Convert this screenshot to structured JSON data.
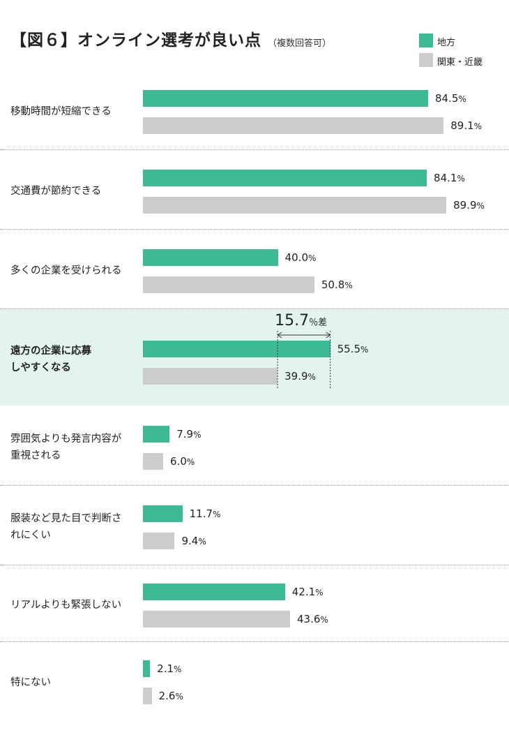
{
  "title": "【図６】オンライン選考が良い点",
  "subtitle": "（複数回答可）",
  "colors": {
    "regional": "#3cb995",
    "kanto_kinki": "#cccccc",
    "highlight_bg": "#e3f3ed"
  },
  "legend": [
    {
      "label": "地方",
      "color": "#3cb995"
    },
    {
      "label": "関東・近畿",
      "color": "#cccccc"
    }
  ],
  "chart_data": {
    "type": "bar",
    "orientation": "horizontal",
    "categories": [
      "移動時間が短縮できる",
      "交通費が節約できる",
      "多くの企業を受けられる",
      "遠方の企業に応募しやすくなる",
      "雰囲気よりも発言内容が重視される",
      "服装など見た目で判断されにくい",
      "リアルよりも緊張しない",
      "特にない"
    ],
    "category_lines": [
      [
        "移動時間が短縮できる"
      ],
      [
        "交通費が節約できる"
      ],
      [
        "多くの企業を受けられる"
      ],
      [
        "遠方の企業に応募",
        "しやすくなる"
      ],
      [
        "雰囲気よりも発言内容が",
        "重視される"
      ],
      [
        "服装など見た目で判断さ",
        "れにくい"
      ],
      [
        "リアルよりも緊張しない"
      ],
      [
        "特にない"
      ]
    ],
    "series": [
      {
        "name": "地方",
        "values": [
          84.5,
          84.1,
          40.0,
          55.5,
          7.9,
          11.7,
          42.1,
          2.1
        ]
      },
      {
        "name": "関東・近畿",
        "values": [
          89.1,
          89.9,
          50.8,
          39.9,
          6.0,
          9.4,
          43.6,
          2.6
        ]
      }
    ],
    "value_labels": [
      [
        "84.5",
        "84.1",
        "40.0",
        "55.5",
        "7.9",
        "11.7",
        "42.1",
        "2.1"
      ],
      [
        "89.1",
        "89.9",
        "50.8",
        "39.9",
        "6.0",
        "9.4",
        "43.6",
        "2.6"
      ]
    ],
    "unit": "%",
    "highlight_category": "遠方の企業に応募しやすくなる",
    "annotation": {
      "category": "遠方の企業に応募しやすくなる",
      "value": "15.7",
      "unit": "％差"
    },
    "legend_position": "top-right",
    "grid": false
  }
}
